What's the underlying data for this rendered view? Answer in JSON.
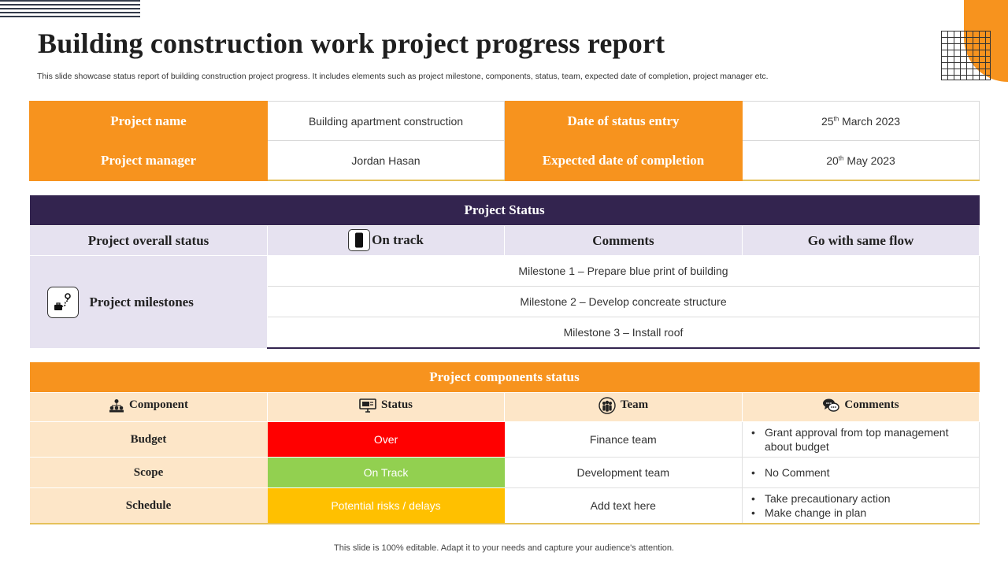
{
  "title": "Building construction  work project progress report",
  "subtitle": "This slide showcase status report of building construction project progress. It includes elements such as project milestone, components, status, team, expected date of completion, project manager etc.",
  "info": {
    "project_name_label": "Project  name",
    "project_name_value": "Building apartment construction",
    "date_label": "Date of status entry",
    "date_day": "25",
    "date_suffix": "th",
    "date_rest": " March 2023",
    "manager_label": "Project manager",
    "manager_value": "Jordan Hasan",
    "completion_label": "Expected date of completion",
    "completion_day": "20",
    "completion_suffix": "th",
    "completion_rest": " May 2023"
  },
  "status": {
    "header": "Project Status",
    "overall_label": "Project overall status",
    "overall_value": "On track",
    "comments_label": "Comments",
    "comments_value": "Go with same flow",
    "milestones_label": "Project milestones",
    "milestones": [
      "Milestone  1 – Prepare blue print of building",
      "Milestone  2 – Develop concreate structure",
      "Milestone  3 – Install roof"
    ]
  },
  "components": {
    "header": "Project components status",
    "columns": [
      "Component",
      "Status",
      "Team",
      "Comments"
    ],
    "rows": [
      {
        "name": "Budget",
        "status": "Over",
        "team": "Finance team",
        "comments": [
          "Grant approval from top management about budget"
        ]
      },
      {
        "name": "Scope",
        "status": "On Track",
        "team": "Development team",
        "comments": [
          "No Comment"
        ]
      },
      {
        "name": "Schedule",
        "status": "Potential risks / delays",
        "team": "Add text here",
        "comments": [
          "Take precautionary action",
          "Make change in plan"
        ]
      }
    ],
    "status_colors": {
      "Over": "#ff0000",
      "On Track": "#92d050",
      "Potential risks / delays": "#ffc000"
    }
  },
  "colors": {
    "accent": "#f7931e",
    "dark": "#33244f",
    "lavender": "#e6e2f0",
    "peach": "#fde6c8"
  },
  "icons": [
    "phone-icon",
    "roadmap-icon",
    "hierarchy-icon",
    "monitor-icon",
    "team-icon",
    "chat-icon"
  ],
  "footer": "This slide is 100% editable. Adapt it to your needs and capture your audience's attention."
}
